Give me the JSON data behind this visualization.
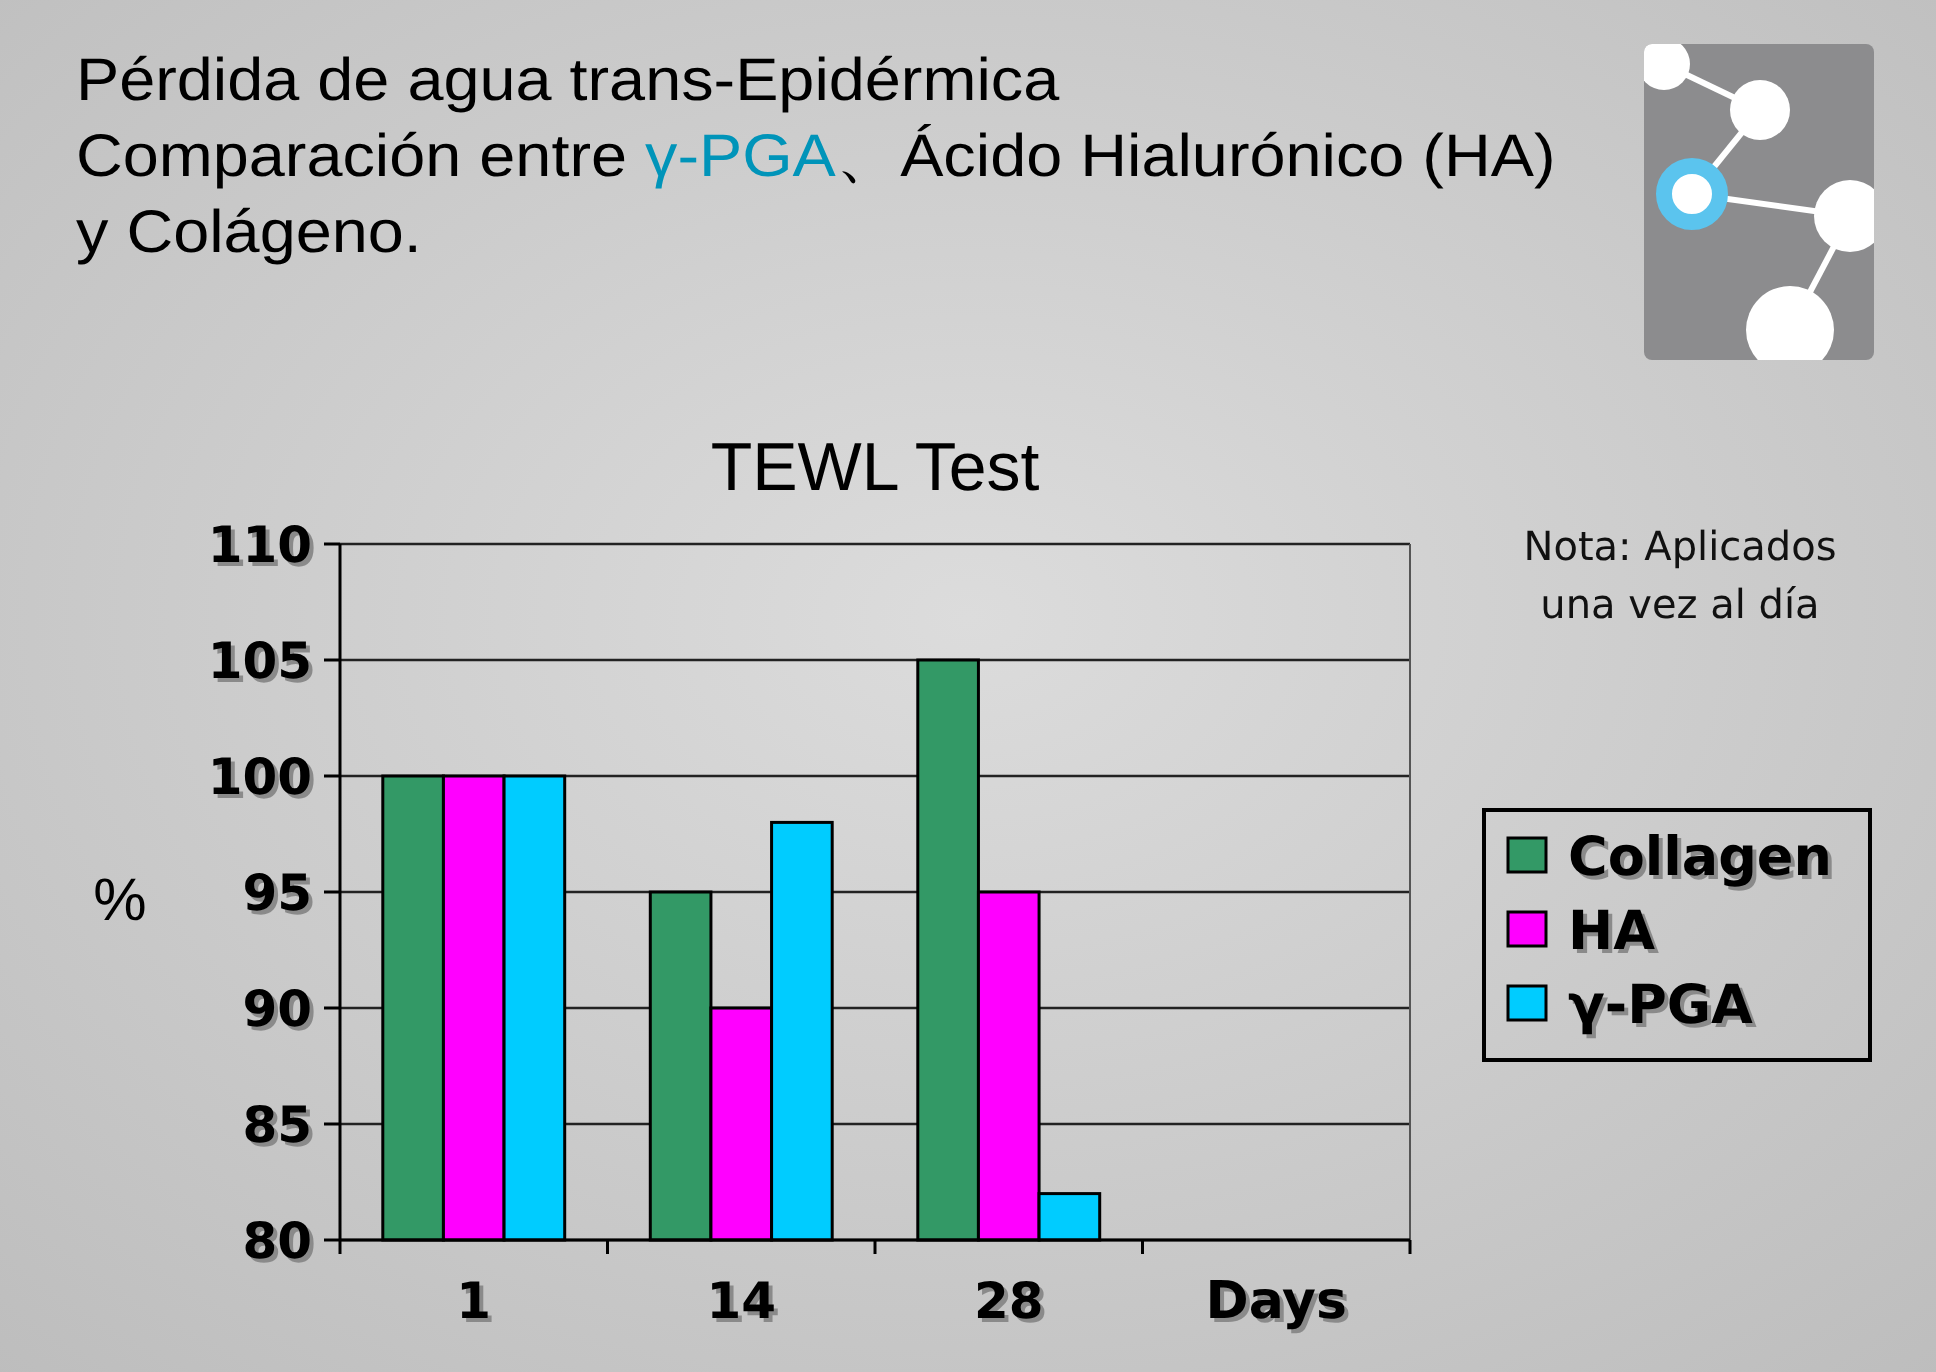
{
  "chart_data": {
    "type": "bar",
    "title": "Pérdida de agua trans-Epidérmica\nComparación entre γ-PGA、Ácido Hialurónico (HA)\ny Colágeno.",
    "subtitle": "TEWL Test",
    "ylabel": "%",
    "xlabel": "Days",
    "categories": [
      "1",
      "14",
      "28",
      null
    ],
    "series": [
      {
        "name": "Collagen",
        "color": "#339966",
        "values": [
          100,
          95,
          105,
          null
        ]
      },
      {
        "name": "HA",
        "color": "#ff00ff",
        "values": [
          100,
          90,
          95,
          null
        ]
      },
      {
        "name": "γ-PGA",
        "color": "#00ccff",
        "values": [
          100,
          98,
          82,
          null
        ]
      }
    ],
    "ylim": [
      80,
      110
    ],
    "yticks": [
      80,
      85,
      90,
      95,
      100,
      105,
      110
    ],
    "grid": "y",
    "legend": "right",
    "annotations": [
      "Nota: Aplicados una vez al día"
    ]
  }
}
